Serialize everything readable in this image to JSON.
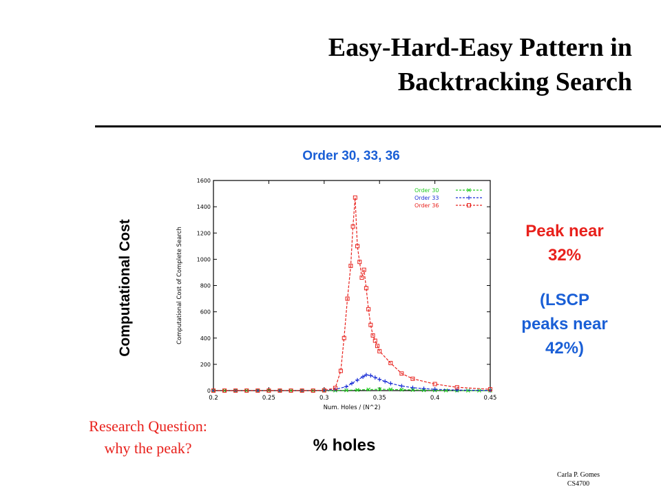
{
  "slide": {
    "title_line1": "Easy-Hard-Easy Pattern in",
    "title_line2": "Backtracking Search",
    "subtitle": "Order 30, 33, 36",
    "y_axis_big": "Computational Cost",
    "x_axis_big": "% holes",
    "peak_line1": "Peak near",
    "peak_line2": "32%",
    "lscp_line1": "(LSCP",
    "lscp_line2": "peaks near",
    "lscp_line3": "42%)",
    "question_line1": "Research Question:",
    "question_line2": "why the peak?",
    "footer_line1": "Carla P. Gomes",
    "footer_line2": "CS4700"
  },
  "chart_data": {
    "type": "line",
    "xlabel": "Num. Holes / (N^2)",
    "ylabel": "Computational Cost of Complete Search",
    "xlim": [
      0.2,
      0.45
    ],
    "ylim": [
      0,
      1600
    ],
    "x_ticks": [
      "0.2",
      "0.25",
      "0.3",
      "0.35",
      "0.4",
      "0.45"
    ],
    "y_ticks": [
      "0",
      "200",
      "400",
      "600",
      "800",
      "1000",
      "1200",
      "1400",
      "1600"
    ],
    "legend_position": "top-right",
    "series": [
      {
        "name": "Order 30",
        "color": "#22cc22",
        "marker": "x",
        "x": [
          0.2,
          0.21,
          0.22,
          0.23,
          0.24,
          0.25,
          0.26,
          0.27,
          0.28,
          0.29,
          0.3,
          0.31,
          0.32,
          0.33,
          0.34,
          0.35,
          0.36,
          0.37,
          0.38,
          0.39,
          0.4,
          0.41,
          0.42,
          0.43,
          0.44,
          0.45
        ],
        "y": [
          0,
          0,
          0,
          0,
          0,
          0,
          0,
          0,
          0,
          0,
          0,
          1,
          2,
          5,
          8,
          10,
          9,
          7,
          5,
          3,
          2,
          1,
          1,
          0,
          0,
          0
        ]
      },
      {
        "name": "Order 33",
        "color": "#1a2fd6",
        "marker": "+",
        "x": [
          0.2,
          0.22,
          0.24,
          0.26,
          0.28,
          0.3,
          0.31,
          0.32,
          0.325,
          0.33,
          0.335,
          0.338,
          0.342,
          0.346,
          0.35,
          0.355,
          0.36,
          0.37,
          0.38,
          0.39,
          0.4,
          0.42,
          0.45
        ],
        "y": [
          0,
          0,
          0,
          0,
          0,
          2,
          10,
          30,
          55,
          80,
          105,
          120,
          115,
          100,
          85,
          70,
          55,
          35,
          22,
          15,
          10,
          4,
          1
        ]
      },
      {
        "name": "Order 36",
        "color": "#e8211c",
        "marker": "square",
        "x": [
          0.2,
          0.21,
          0.22,
          0.23,
          0.24,
          0.25,
          0.26,
          0.27,
          0.28,
          0.29,
          0.3,
          0.31,
          0.315,
          0.318,
          0.321,
          0.324,
          0.326,
          0.328,
          0.33,
          0.332,
          0.334,
          0.336,
          0.338,
          0.34,
          0.342,
          0.344,
          0.346,
          0.348,
          0.35,
          0.36,
          0.37,
          0.38,
          0.4,
          0.42,
          0.45
        ],
        "y": [
          0,
          0,
          0,
          0,
          0,
          0,
          0,
          0,
          0,
          0,
          2,
          20,
          150,
          400,
          700,
          950,
          1250,
          1470,
          1100,
          980,
          860,
          920,
          780,
          620,
          500,
          420,
          380,
          340,
          300,
          210,
          130,
          90,
          50,
          25,
          10
        ]
      }
    ]
  }
}
